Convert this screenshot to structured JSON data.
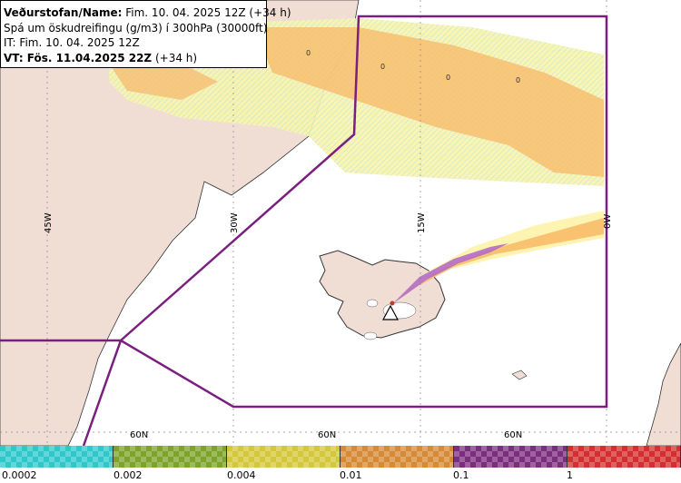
{
  "info": {
    "line1_key": "Veðurstofan/Name:",
    "line1_val": " Fim. 10. 04. 2025 12Z (+34 h)",
    "line2": "Spá um öskudreifingu (g/m3) í 300hPa (30000ft)",
    "line3": "IT: Fim. 10. 04. 2025 12Z",
    "line4_key": "VT:",
    "line4_val": " Fös. 11.04.2025 22Z",
    "line4_tail": " (+34 h)"
  },
  "map": {
    "lon_labels": [
      "45W",
      "30W",
      "15W",
      "0W"
    ],
    "lat_labels": [
      "60N",
      "60N",
      "60N"
    ],
    "contour_labels": [
      "0",
      "0",
      "0",
      "0"
    ],
    "colors": {
      "ocean": "#ffffff",
      "land": "#f0ded5",
      "boundary": "#7a1f7f",
      "grid": "#888888"
    }
  },
  "legend": {
    "labels": [
      "0.0002",
      "0.002",
      "0.004",
      "0.01",
      "0.1",
      "1"
    ],
    "colors": [
      "#2ec8cc",
      "#7ea32b",
      "#d4c83a",
      "#d68a35",
      "#7d2d7d",
      "#d42e2e"
    ]
  }
}
